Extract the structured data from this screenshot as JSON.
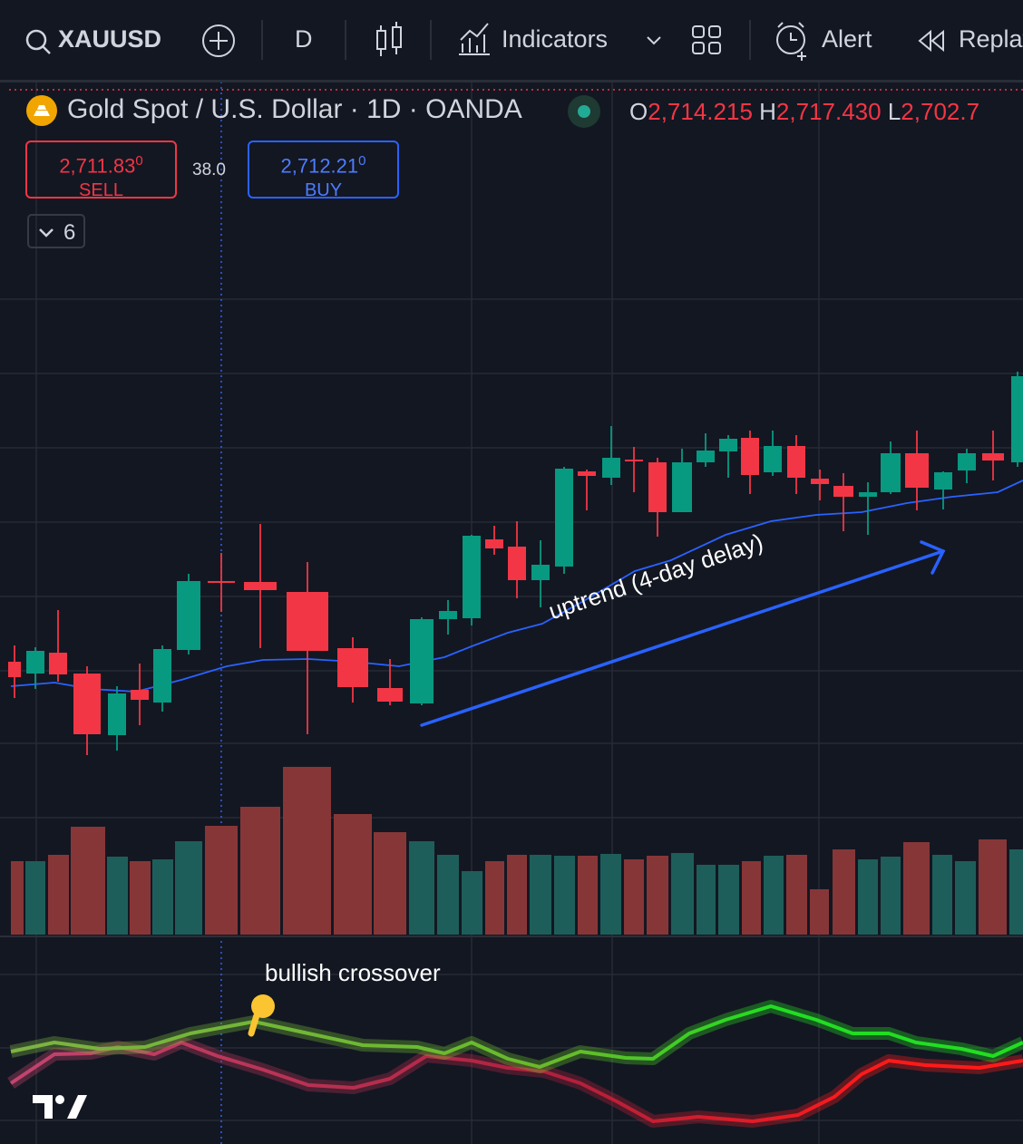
{
  "toolbar": {
    "symbol": "XAUUSD",
    "interval": "D",
    "indicators": "Indicators",
    "alert": "Alert",
    "replay": "Replay"
  },
  "legend": {
    "title": "Gold Spot / U.S. Dollar · 1D · OANDA",
    "o_label": "O",
    "open": "2,714.215",
    "h_label": "H",
    "high": "2,717.430",
    "l_label": "L",
    "low": "2,702.7"
  },
  "trade": {
    "sell_price": "2,711.83",
    "sell_sup": "0",
    "sell": "SELL",
    "spread": "38.0",
    "buy_price": "2,712.21",
    "buy_sup": "0",
    "buy": "BUY"
  },
  "indicators_count": "6",
  "annotations": {
    "uptrend": "uptrend (4-day delay)",
    "crossover": "bullish crossover"
  }
}
